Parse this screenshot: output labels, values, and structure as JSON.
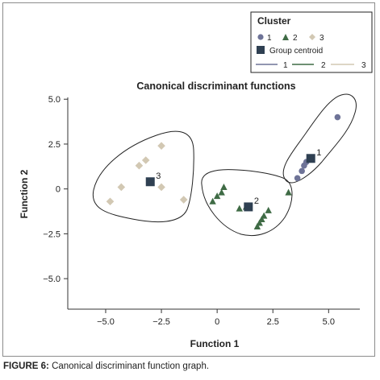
{
  "caption": {
    "label": "FIGURE 6:",
    "text": " Canonical discriminant function graph."
  },
  "chart_data": {
    "type": "scatter",
    "title": "Canonical discriminant functions",
    "xlabel": "Function 1",
    "ylabel": "Function 2",
    "xlim": [
      -6.7,
      6.4
    ],
    "ylim": [
      -6.7,
      5.1
    ],
    "xticks": [
      -5,
      -2.5,
      0,
      2.5,
      5
    ],
    "xtick_labels": [
      "−5.0",
      "−2.5",
      "0",
      "2.5",
      "5.0"
    ],
    "yticks": [
      5,
      2.5,
      0,
      -2.5,
      -5
    ],
    "ytick_labels": [
      "5.0",
      "2.5",
      "0",
      "−2.5",
      "−5.0"
    ],
    "grid": false,
    "legend": {
      "title": "Cluster",
      "placement": "top-right",
      "marker_entries": [
        "1",
        "2",
        "3"
      ],
      "centroid_label": "Group centroid",
      "line_entries": [
        "1",
        "2",
        "3"
      ]
    },
    "colors": {
      "cluster1": "#6e7397",
      "cluster2": "#3f6b45",
      "cluster3": "#d2c8b3",
      "centroid": "#2f4052",
      "hull_line": "#222222"
    },
    "series": [
      {
        "name": "1",
        "marker": "circle",
        "points": [
          [
            5.4,
            4.0
          ],
          [
            3.6,
            0.6
          ],
          [
            3.8,
            1.0
          ],
          [
            3.9,
            1.3
          ],
          [
            4.0,
            1.5
          ]
        ],
        "centroid": [
          4.2,
          1.7
        ],
        "centroid_label": "1"
      },
      {
        "name": "2",
        "marker": "triangle",
        "points": [
          [
            -0.2,
            -0.7
          ],
          [
            0.0,
            -0.4
          ],
          [
            0.2,
            -0.2
          ],
          [
            0.3,
            0.1
          ],
          [
            1.0,
            -1.1
          ],
          [
            1.3,
            -1.0
          ],
          [
            1.8,
            -2.1
          ],
          [
            1.9,
            -1.9
          ],
          [
            2.0,
            -1.7
          ],
          [
            2.1,
            -1.5
          ],
          [
            2.3,
            -1.2
          ],
          [
            3.2,
            -0.2
          ]
        ],
        "centroid": [
          1.4,
          -1.0
        ],
        "centroid_label": "2"
      },
      {
        "name": "3",
        "marker": "diamond",
        "points": [
          [
            -4.8,
            -0.7
          ],
          [
            -4.3,
            0.1
          ],
          [
            -3.5,
            1.3
          ],
          [
            -3.2,
            1.6
          ],
          [
            -2.5,
            2.4
          ],
          [
            -2.5,
            0.1
          ],
          [
            -1.5,
            -0.6
          ]
        ],
        "centroid": [
          -3.0,
          0.4
        ],
        "centroid_label": "3"
      }
    ]
  }
}
